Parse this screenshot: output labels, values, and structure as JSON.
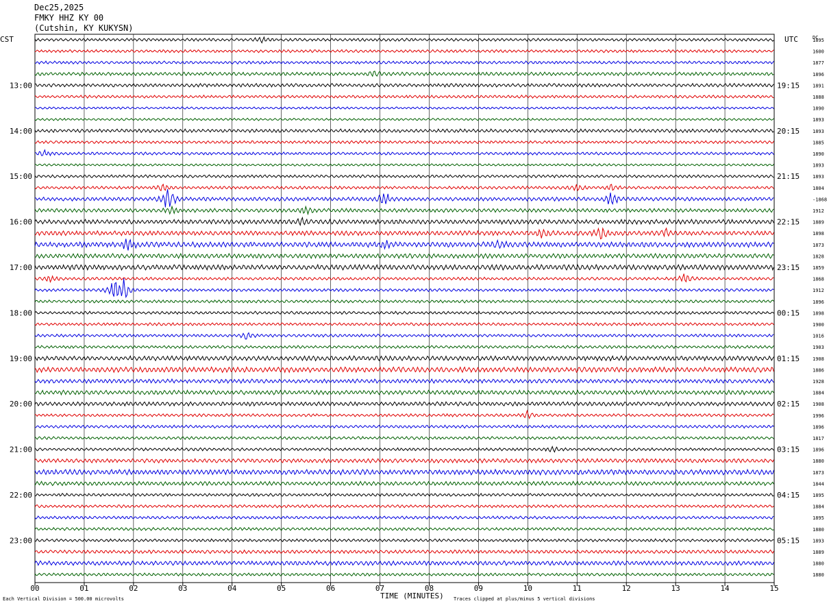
{
  "header": {
    "date": "Dec25,2025",
    "station": "FMKY HHZ KY 00",
    "location": "(Cutshin, KY KUKYSN)"
  },
  "left_tz": "CST",
  "right_tz": "UTC",
  "dc_label": "DC",
  "footer": {
    "scale": "Each Vertical Division =  500.00 microvolts",
    "x_title": "TIME (MINUTES)",
    "clip_note": "Traces clipped at plus/minus 5 vertical divisions"
  },
  "chart_data": {
    "type": "line",
    "title": "",
    "xlabel": "TIME (MINUTES)",
    "ylabel": "",
    "xlim": [
      0,
      15
    ],
    "x_ticks": [
      "00",
      "01",
      "02",
      "03",
      "04",
      "05",
      "06",
      "07",
      "08",
      "09",
      "10",
      "11",
      "12",
      "13",
      "14",
      "15"
    ],
    "grid": true,
    "trace_colors": [
      "#000000",
      "#e00000",
      "#0000e0",
      "#006000"
    ],
    "trace_count": 48,
    "left_hour_labels": [
      {
        "trace": 4,
        "label": "13:00"
      },
      {
        "trace": 8,
        "label": "14:00"
      },
      {
        "trace": 12,
        "label": "15:00"
      },
      {
        "trace": 16,
        "label": "16:00"
      },
      {
        "trace": 20,
        "label": "17:00"
      },
      {
        "trace": 24,
        "label": "18:00"
      },
      {
        "trace": 28,
        "label": "19:00"
      },
      {
        "trace": 32,
        "label": "20:00"
      },
      {
        "trace": 36,
        "label": "21:00"
      },
      {
        "trace": 40,
        "label": "22:00"
      },
      {
        "trace": 44,
        "label": "23:00"
      }
    ],
    "right_hour_labels": [
      {
        "trace": 4,
        "label": "19:15"
      },
      {
        "trace": 8,
        "label": "20:15"
      },
      {
        "trace": 12,
        "label": "21:15"
      },
      {
        "trace": 16,
        "label": "22:15"
      },
      {
        "trace": 20,
        "label": "23:15"
      },
      {
        "trace": 24,
        "label": "00:15"
      },
      {
        "trace": 28,
        "label": "01:15"
      },
      {
        "trace": 32,
        "label": "02:15"
      },
      {
        "trace": 36,
        "label": "03:15"
      },
      {
        "trace": 40,
        "label": "04:15"
      },
      {
        "trace": 44,
        "label": "05:15"
      }
    ],
    "dc_values": [
      "1895",
      "1600",
      "1877",
      "1896",
      "1891",
      "1888",
      "1890",
      "1893",
      "1893",
      "1885",
      "1890",
      "1893",
      "1893",
      "1804",
      "-1868",
      "1912",
      "1889",
      "1898",
      "1873",
      "1828",
      "1859",
      "1868",
      "1912",
      "1896",
      "1898",
      "1900",
      "1016",
      "1903",
      "1908",
      "1886",
      "1928",
      "1884",
      "1908",
      "1996",
      "1896",
      "1817",
      "1896",
      "1880",
      "1873",
      "1844",
      "1895",
      "1884",
      "1895",
      "1880",
      "1893",
      "1889",
      "1880",
      "1880"
    ],
    "trace_activity": [
      {
        "trace": 0,
        "level": 1.0,
        "events": [
          {
            "t": 4.6,
            "amp": 2
          }
        ]
      },
      {
        "trace": 1,
        "level": 1.0,
        "events": []
      },
      {
        "trace": 2,
        "level": 1.0,
        "events": []
      },
      {
        "trace": 3,
        "level": 1.2,
        "events": [
          {
            "t": 6.9,
            "amp": 1.5
          }
        ]
      },
      {
        "trace": 4,
        "level": 1.2,
        "events": []
      },
      {
        "trace": 5,
        "level": 1.0,
        "events": []
      },
      {
        "trace": 6,
        "level": 0.8,
        "events": []
      },
      {
        "trace": 7,
        "level": 0.8,
        "events": []
      },
      {
        "trace": 8,
        "level": 1.2,
        "events": []
      },
      {
        "trace": 9,
        "level": 1.0,
        "events": []
      },
      {
        "trace": 10,
        "level": 1.0,
        "events": [
          {
            "t": 0.2,
            "amp": 2
          }
        ]
      },
      {
        "trace": 11,
        "level": 0.8,
        "events": []
      },
      {
        "trace": 12,
        "level": 1.0,
        "events": []
      },
      {
        "trace": 13,
        "level": 1.0,
        "events": [
          {
            "t": 2.6,
            "amp": 3
          },
          {
            "t": 11.0,
            "amp": 3
          },
          {
            "t": 11.7,
            "amp": 2
          }
        ]
      },
      {
        "trace": 14,
        "level": 1.3,
        "events": [
          {
            "t": 2.7,
            "amp": 9
          },
          {
            "t": 7.1,
            "amp": 5
          },
          {
            "t": 11.7,
            "amp": 5
          }
        ]
      },
      {
        "trace": 15,
        "level": 1.3,
        "events": [
          {
            "t": 2.8,
            "amp": 3
          },
          {
            "t": 5.5,
            "amp": 2
          }
        ]
      },
      {
        "trace": 16,
        "level": 1.6,
        "events": [
          {
            "t": 5.4,
            "amp": 2
          }
        ]
      },
      {
        "trace": 17,
        "level": 1.6,
        "events": [
          {
            "t": 10.3,
            "amp": 3
          },
          {
            "t": 11.5,
            "amp": 4
          },
          {
            "t": 12.8,
            "amp": 2
          }
        ]
      },
      {
        "trace": 18,
        "level": 1.8,
        "events": [
          {
            "t": 1.9,
            "amp": 4
          },
          {
            "t": 7.1,
            "amp": 2
          },
          {
            "t": 9.4,
            "amp": 3
          }
        ]
      },
      {
        "trace": 19,
        "level": 1.6,
        "events": []
      },
      {
        "trace": 20,
        "level": 1.8,
        "events": []
      },
      {
        "trace": 21,
        "level": 1.0,
        "events": [
          {
            "t": 0.3,
            "amp": 2
          },
          {
            "t": 13.2,
            "amp": 4
          }
        ]
      },
      {
        "trace": 22,
        "level": 1.0,
        "events": [
          {
            "t": 1.6,
            "amp": 7
          },
          {
            "t": 1.8,
            "amp": 8
          }
        ]
      },
      {
        "trace": 23,
        "level": 1.0,
        "events": []
      },
      {
        "trace": 24,
        "level": 1.0,
        "events": []
      },
      {
        "trace": 25,
        "level": 1.0,
        "events": []
      },
      {
        "trace": 26,
        "level": 1.0,
        "events": [
          {
            "t": 4.3,
            "amp": 2.5
          }
        ]
      },
      {
        "trace": 27,
        "level": 1.0,
        "events": []
      },
      {
        "trace": 28,
        "level": 1.6,
        "events": []
      },
      {
        "trace": 29,
        "level": 1.8,
        "events": []
      },
      {
        "trace": 30,
        "level": 1.4,
        "events": []
      },
      {
        "trace": 31,
        "level": 1.5,
        "events": []
      },
      {
        "trace": 32,
        "level": 1.4,
        "events": []
      },
      {
        "trace": 33,
        "level": 1.0,
        "events": [
          {
            "t": 10.0,
            "amp": 2.5
          }
        ]
      },
      {
        "trace": 34,
        "level": 1.0,
        "events": []
      },
      {
        "trace": 35,
        "level": 1.0,
        "events": []
      },
      {
        "trace": 36,
        "level": 1.0,
        "events": [
          {
            "t": 10.5,
            "amp": 1.5
          }
        ]
      },
      {
        "trace": 37,
        "level": 1.4,
        "events": []
      },
      {
        "trace": 38,
        "level": 1.8,
        "events": []
      },
      {
        "trace": 39,
        "level": 1.4,
        "events": []
      },
      {
        "trace": 40,
        "level": 1.0,
        "events": []
      },
      {
        "trace": 41,
        "level": 1.0,
        "events": []
      },
      {
        "trace": 42,
        "level": 1.0,
        "events": []
      },
      {
        "trace": 43,
        "level": 1.0,
        "events": []
      },
      {
        "trace": 44,
        "level": 1.0,
        "events": []
      },
      {
        "trace": 45,
        "level": 1.2,
        "events": []
      },
      {
        "trace": 46,
        "level": 1.5,
        "events": []
      },
      {
        "trace": 47,
        "level": 1.0,
        "events": []
      }
    ]
  }
}
